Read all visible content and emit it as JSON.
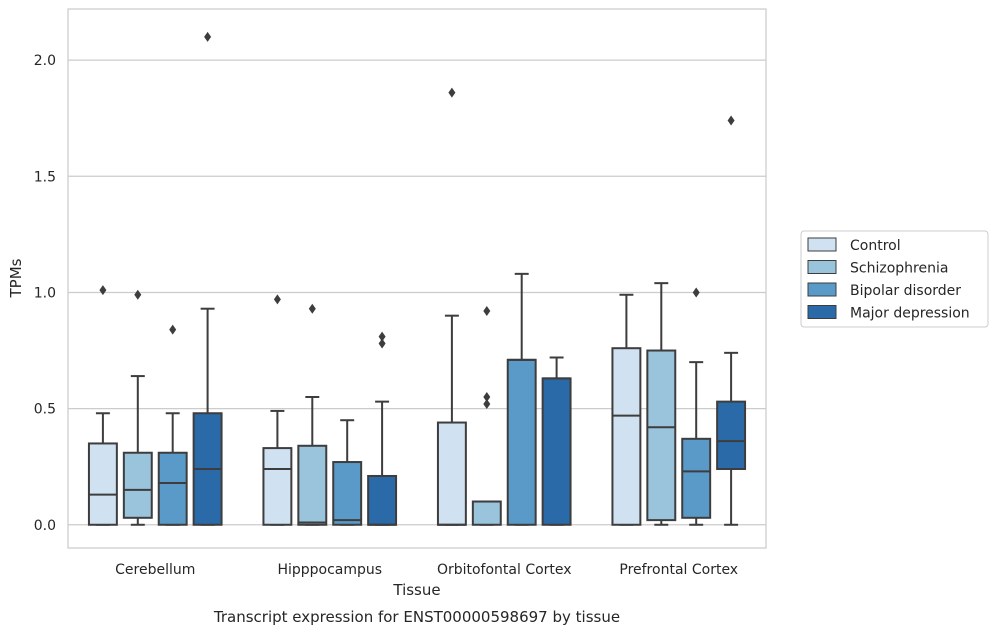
{
  "chart_data": {
    "type": "box",
    "caption": "Transcript expression for ENST00000598697 by tissue",
    "xlabel": "Tissue",
    "ylabel": "TPMs",
    "ylim": [
      -0.1,
      2.22
    ],
    "yticks": [
      "0.0",
      "0.5",
      "1.0",
      "1.5",
      "2.0"
    ],
    "grid": "horizontal",
    "legend_position": "right",
    "categories": [
      "Cerebellum",
      "Hipppocampus",
      "Orbitofontal Cortex",
      "Prefrontal Cortex"
    ],
    "series": [
      {
        "name": "Control",
        "color": "#d0e1f2",
        "boxes": [
          {
            "whislo": 0.0,
            "q1": 0.0,
            "med": 0.13,
            "q3": 0.35,
            "whishi": 0.48,
            "fliers": [
              1.01
            ]
          },
          {
            "whislo": 0.0,
            "q1": 0.0,
            "med": 0.24,
            "q3": 0.33,
            "whishi": 0.49,
            "fliers": [
              0.97
            ]
          },
          {
            "whislo": 0.0,
            "q1": 0.0,
            "med": 0.0,
            "q3": 0.44,
            "whishi": 0.9,
            "fliers": [
              1.86
            ]
          },
          {
            "whislo": 0.0,
            "q1": 0.0,
            "med": 0.47,
            "q3": 0.76,
            "whishi": 0.99,
            "fliers": []
          }
        ]
      },
      {
        "name": "Schizophrenia",
        "color": "#9ac3dc",
        "boxes": [
          {
            "whislo": 0.0,
            "q1": 0.03,
            "med": 0.15,
            "q3": 0.31,
            "whishi": 0.64,
            "fliers": [
              0.99
            ]
          },
          {
            "whislo": 0.0,
            "q1": 0.0,
            "med": 0.01,
            "q3": 0.34,
            "whishi": 0.55,
            "fliers": [
              0.93
            ]
          },
          {
            "whislo": 0.0,
            "q1": 0.0,
            "med": 0.1,
            "q3": 0.1,
            "whishi": 0.1,
            "fliers": [
              0.92,
              0.55,
              0.52
            ]
          },
          {
            "whislo": 0.0,
            "q1": 0.02,
            "med": 0.42,
            "q3": 0.75,
            "whishi": 1.04,
            "fliers": []
          }
        ]
      },
      {
        "name": "Bipolar disorder",
        "color": "#5a9ac8",
        "boxes": [
          {
            "whislo": 0.0,
            "q1": 0.0,
            "med": 0.18,
            "q3": 0.31,
            "whishi": 0.48,
            "fliers": [
              0.84
            ]
          },
          {
            "whislo": 0.0,
            "q1": 0.0,
            "med": 0.02,
            "q3": 0.27,
            "whishi": 0.45,
            "fliers": []
          },
          {
            "whislo": 0.0,
            "q1": 0.0,
            "med": 0.71,
            "q3": 0.71,
            "whishi": 1.08,
            "fliers": []
          },
          {
            "whislo": 0.0,
            "q1": 0.03,
            "med": 0.23,
            "q3": 0.37,
            "whishi": 0.7,
            "fliers": [
              1.0
            ]
          }
        ]
      },
      {
        "name": "Major depression",
        "color": "#2b6aa8",
        "boxes": [
          {
            "whislo": 0.0,
            "q1": 0.0,
            "med": 0.24,
            "q3": 0.48,
            "whishi": 0.93,
            "fliers": [
              2.1
            ]
          },
          {
            "whislo": 0.0,
            "q1": 0.0,
            "med": 0.0,
            "q3": 0.21,
            "whishi": 0.53,
            "fliers": [
              0.81,
              0.78
            ]
          },
          {
            "whislo": 0.0,
            "q1": 0.0,
            "med": 0.63,
            "q3": 0.63,
            "whishi": 0.72,
            "fliers": []
          },
          {
            "whislo": 0.0,
            "q1": 0.24,
            "med": 0.36,
            "q3": 0.53,
            "whishi": 0.74,
            "fliers": [
              1.74
            ]
          }
        ]
      }
    ]
  }
}
